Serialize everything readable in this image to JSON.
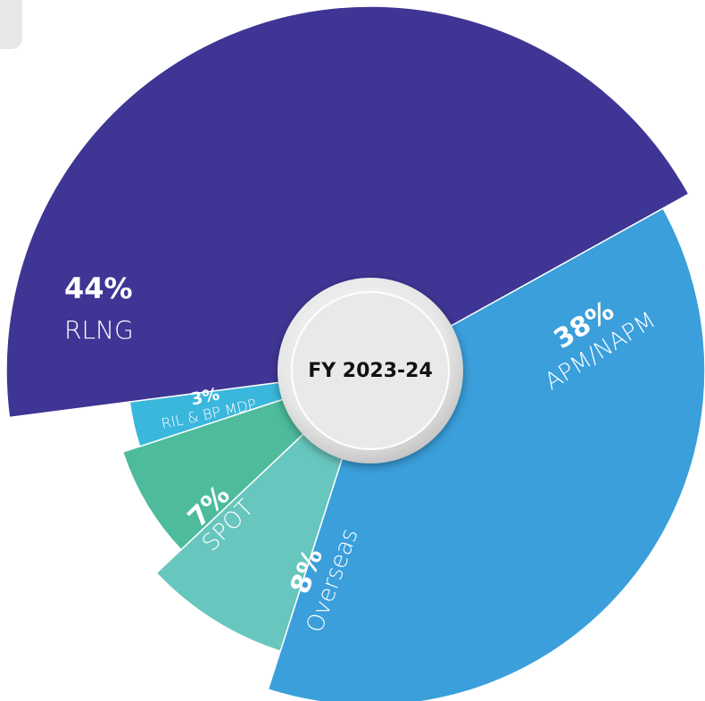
{
  "chart_data": {
    "type": "pie",
    "title": "FY 2023-24",
    "categories": [
      "APM/NAPM",
      "Overseas",
      "SPOT",
      "RIL & BP MDP",
      "RLNG"
    ],
    "values": [
      38,
      8,
      7,
      3,
      44
    ],
    "value_labels": [
      "38%",
      "8%",
      "7%",
      "3%",
      "44%"
    ],
    "colors": [
      "#3a9fdb",
      "#67c6bd",
      "#4dbb9c",
      "#3ab7dc",
      "#3f3594"
    ]
  }
}
